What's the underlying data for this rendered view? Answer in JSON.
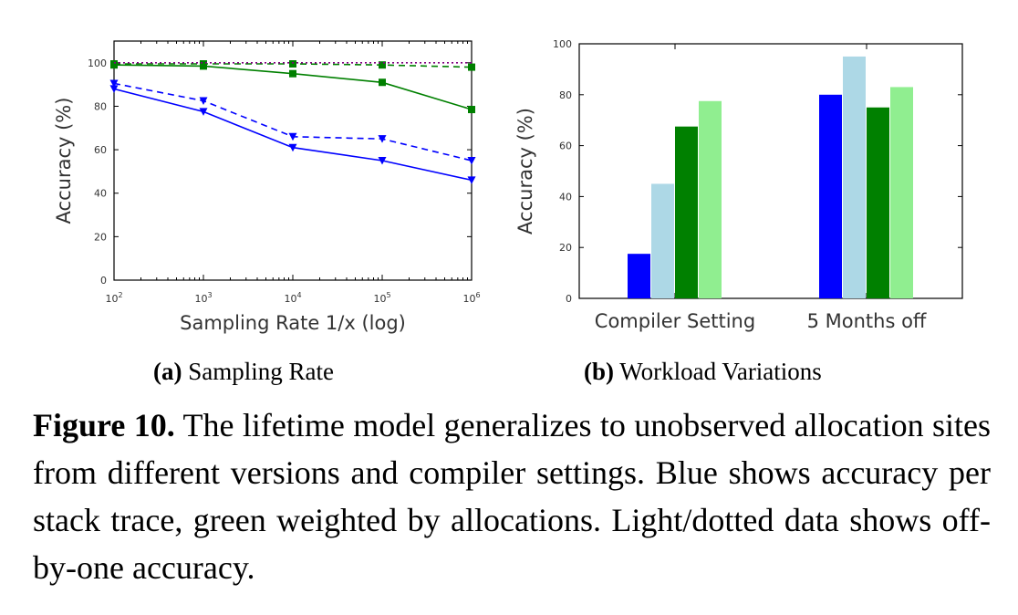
{
  "chart_data": [
    {
      "type": "line",
      "xlabel": "Sampling Rate 1/x (log)",
      "ylabel": "Accuracy (%)",
      "x_scale": "log",
      "xlim": [
        100,
        1000000
      ],
      "ylim": [
        0,
        110
      ],
      "x": [
        100,
        1000,
        10000,
        100000,
        1000000
      ],
      "x_tick_labels": [
        {
          "base": "10",
          "exp": "2"
        },
        {
          "base": "10",
          "exp": "3"
        },
        {
          "base": "10",
          "exp": "4"
        },
        {
          "base": "10",
          "exp": "5"
        },
        {
          "base": "10",
          "exp": "6"
        }
      ],
      "y_ticks": [
        0,
        20,
        40,
        60,
        80,
        100
      ],
      "series": [
        {
          "color": "#0000ff",
          "style": "solid",
          "marker": "triangle-down",
          "values": [
            88,
            77.5,
            61,
            55,
            46
          ]
        },
        {
          "color": "#0000ff",
          "style": "dashed",
          "marker": "triangle-down",
          "values": [
            90.5,
            82.5,
            66,
            65,
            55
          ]
        },
        {
          "color": "#008000",
          "style": "solid",
          "marker": "square",
          "values": [
            99,
            98.5,
            95,
            91,
            78.5
          ]
        },
        {
          "color": "#008000",
          "style": "dashed",
          "marker": "square",
          "values": [
            99.5,
            99.5,
            99.5,
            99,
            98
          ]
        },
        {
          "color": "#800080",
          "style": "dotted",
          "marker": "none",
          "values": [
            100,
            100,
            100,
            100,
            100
          ]
        }
      ]
    },
    {
      "type": "bar",
      "ylabel": "Accuracy (%)",
      "ylim": [
        0,
        100
      ],
      "y_ticks": [
        0,
        20,
        40,
        60,
        80,
        100
      ],
      "categories": [
        "Compiler Setting",
        "5 Months off"
      ],
      "series": [
        {
          "color": "#0000ff",
          "values": [
            17.5,
            80
          ]
        },
        {
          "color": "#add8e6",
          "values": [
            45,
            95
          ]
        },
        {
          "color": "#008000",
          "values": [
            67.5,
            75
          ]
        },
        {
          "color": "#90ee90",
          "values": [
            77.5,
            83
          ]
        }
      ]
    }
  ],
  "captions": {
    "a_label": "(a)",
    "a_text": "Sampling Rate",
    "b_label": "(b)",
    "b_text": "Workload Variations",
    "figure_label": "Figure 10.",
    "figure_text": "The lifetime model generalizes to unobserved allocation sites from different versions and compiler settings. Blue shows accuracy per stack trace, green weighted by allocations. Light/dotted data shows off-by-one accuracy."
  }
}
